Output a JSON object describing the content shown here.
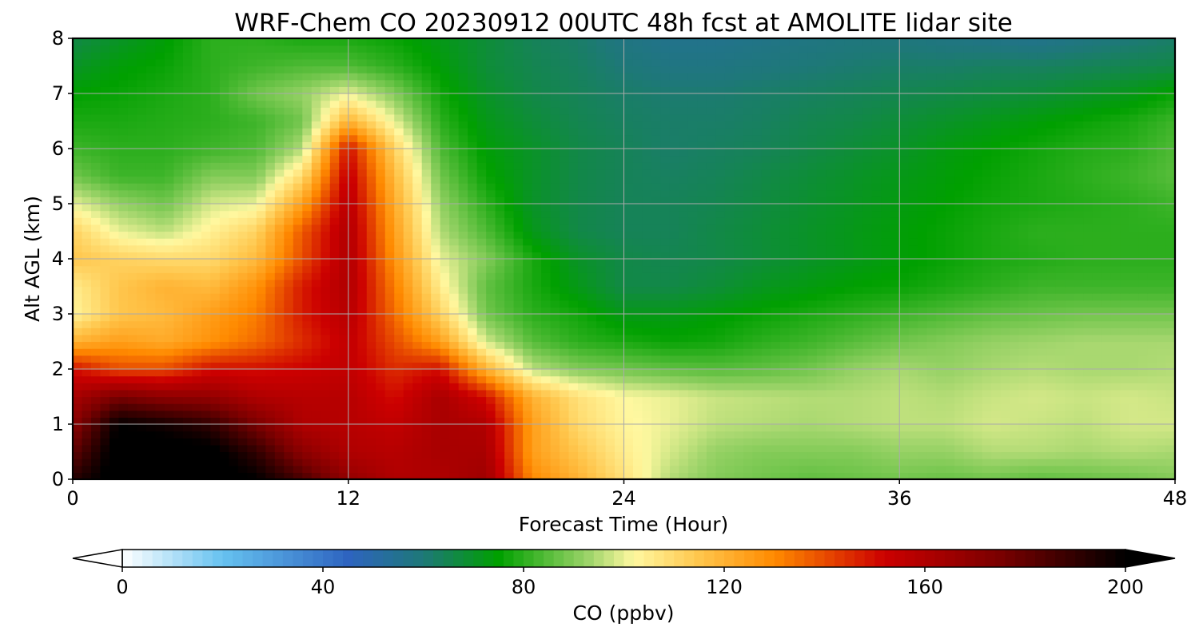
{
  "chart_data": {
    "type": "heatmap",
    "title": "WRF-Chem CO  20230912 00UTC 48h fcst at AMOLITE lidar site",
    "xlabel": "Forecast Time (Hour)",
    "ylabel": "Alt AGL (km)",
    "xlim": [
      0,
      48
    ],
    "ylim": [
      0,
      8
    ],
    "x_ticks": [
      "0",
      "12",
      "24",
      "36",
      "48"
    ],
    "y_ticks": [
      "0",
      "1",
      "2",
      "3",
      "4",
      "5",
      "6",
      "7",
      "8"
    ],
    "grid": true,
    "colorbar": {
      "label": "CO  (ppbv)",
      "range": [
        0,
        200
      ],
      "ticks": [
        "0",
        "40",
        "80",
        "120",
        "160",
        "200"
      ],
      "extend": "both",
      "colors": {
        "low": "#ffffff",
        "light_blue": "#66c2f0",
        "blue": "#2e64c0",
        "teal": "#1e7878",
        "green": "#00a000",
        "light_green": "#9ed46a",
        "pale_yellow": "#fff8a0",
        "yellow_orange": "#ffc64c",
        "orange": "#ff8a00",
        "red": "#cc0000",
        "dark_red": "#7a0000",
        "black": "#000000"
      }
    },
    "hours": [
      0,
      2,
      4,
      6,
      8,
      10,
      12,
      14,
      16,
      18,
      20,
      22,
      24,
      26,
      28,
      30,
      32,
      34,
      36,
      38,
      40,
      42,
      44,
      46,
      48
    ],
    "altitudes_km": [
      0.0,
      0.5,
      1.0,
      1.5,
      2.0,
      2.5,
      3.0,
      3.5,
      4.0,
      4.5,
      5.0,
      5.5,
      6.0,
      6.5,
      7.0,
      7.5,
      8.0
    ],
    "co_ppbv": [
      [
        192,
        205,
        205,
        205,
        200,
        185,
        168,
        160,
        160,
        165,
        130,
        120,
        108,
        95,
        90,
        88,
        86,
        87,
        88,
        87,
        88,
        86,
        87,
        88,
        90
      ],
      [
        180,
        205,
        205,
        203,
        190,
        170,
        160,
        158,
        162,
        162,
        125,
        115,
        105,
        98,
        92,
        90,
        90,
        90,
        92,
        92,
        95,
        95,
        94,
        95,
        94
      ],
      [
        170,
        200,
        196,
        190,
        175,
        160,
        158,
        155,
        162,
        160,
        125,
        110,
        103,
        100,
        96,
        95,
        94,
        95,
        96,
        96,
        98,
        97,
        96,
        98,
        98
      ],
      [
        162,
        175,
        170,
        168,
        160,
        158,
        158,
        150,
        162,
        150,
        120,
        108,
        102,
        100,
        97,
        96,
        95,
        95,
        96,
        95,
        97,
        98,
        97,
        98,
        97
      ],
      [
        150,
        140,
        140,
        150,
        150,
        152,
        155,
        145,
        150,
        120,
        96,
        90,
        88,
        86,
        85,
        86,
        88,
        92,
        94,
        92,
        94,
        95,
        94,
        94,
        95
      ],
      [
        120,
        125,
        122,
        128,
        135,
        145,
        155,
        140,
        125,
        98,
        85,
        80,
        78,
        76,
        77,
        80,
        82,
        85,
        88,
        90,
        92,
        93,
        94,
        94,
        94
      ],
      [
        103,
        115,
        118,
        125,
        132,
        148,
        158,
        135,
        112,
        88,
        80,
        77,
        72,
        72,
        74,
        76,
        78,
        80,
        82,
        84,
        86,
        87,
        88,
        88,
        88
      ],
      [
        105,
        115,
        120,
        118,
        128,
        148,
        160,
        132,
        105,
        86,
        78,
        72,
        66,
        66,
        68,
        71,
        73,
        75,
        76,
        78,
        80,
        82,
        82,
        82,
        82
      ],
      [
        115,
        112,
        110,
        110,
        118,
        140,
        160,
        128,
        100,
        90,
        78,
        70,
        66,
        65,
        66,
        68,
        70,
        72,
        74,
        76,
        78,
        79,
        80,
        80,
        80
      ],
      [
        112,
        100,
        96,
        104,
        112,
        138,
        160,
        125,
        95,
        84,
        72,
        66,
        64,
        64,
        66,
        68,
        70,
        72,
        74,
        76,
        78,
        80,
        80,
        80,
        80
      ],
      [
        100,
        92,
        88,
        98,
        100,
        125,
        158,
        122,
        92,
        80,
        70,
        66,
        64,
        64,
        65,
        67,
        69,
        71,
        73,
        75,
        77,
        78,
        79,
        80,
        82
      ],
      [
        88,
        82,
        82,
        90,
        90,
        110,
        155,
        118,
        88,
        76,
        70,
        66,
        64,
        63,
        64,
        66,
        68,
        70,
        72,
        74,
        76,
        78,
        80,
        82,
        85
      ],
      [
        82,
        80,
        80,
        82,
        84,
        95,
        150,
        112,
        84,
        74,
        70,
        66,
        64,
        62,
        63,
        64,
        66,
        68,
        70,
        73,
        75,
        77,
        79,
        80,
        84
      ],
      [
        78,
        78,
        79,
        80,
        82,
        88,
        120,
        100,
        80,
        72,
        68,
        65,
        63,
        62,
        62,
        63,
        65,
        66,
        68,
        70,
        72,
        74,
        76,
        78,
        82
      ],
      [
        75,
        76,
        78,
        80,
        88,
        92,
        100,
        90,
        77,
        70,
        66,
        64,
        62,
        61,
        61,
        62,
        63,
        64,
        65,
        66,
        67,
        68,
        70,
        72,
        76
      ],
      [
        70,
        74,
        76,
        80,
        82,
        84,
        84,
        80,
        74,
        68,
        65,
        63,
        60,
        58,
        58,
        59,
        60,
        61,
        62,
        62,
        63,
        63,
        64,
        65,
        66
      ],
      [
        66,
        70,
        74,
        80,
        80,
        78,
        78,
        76,
        72,
        68,
        64,
        62,
        58,
        56,
        56,
        57,
        58,
        59,
        59,
        58,
        57,
        56,
        58,
        60,
        62
      ]
    ]
  }
}
